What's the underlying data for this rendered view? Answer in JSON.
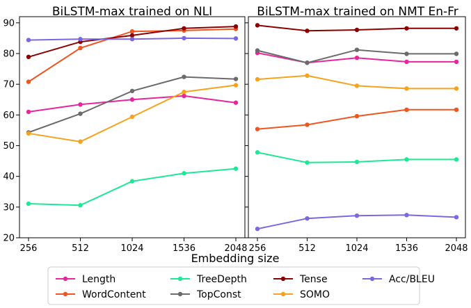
{
  "figure": {
    "xlabel": "Embedding size"
  },
  "colors": {
    "Length": "#e8259a",
    "WordContent": "#f0541f",
    "TreeDepth": "#1de895",
    "TopConst": "#6b6b6b",
    "Tense": "#8b0000",
    "SOMO": "#f7a21b",
    "Acc/BLEU": "#7b68e0"
  },
  "legend": {
    "placement": "bottom-center",
    "entries": [
      "Length",
      "WordContent",
      "TreeDepth",
      "TopConst",
      "Tense",
      "SOMO",
      "Acc/BLEU"
    ]
  },
  "chart_data": [
    {
      "type": "line",
      "title": "BiLSTM-max trained on NLI",
      "xlabel": "",
      "ylabel": "",
      "categories": [
        "256",
        "512",
        "1024",
        "1536",
        "2048"
      ],
      "ylim": [
        20,
        92
      ],
      "yticks": [
        20,
        30,
        40,
        50,
        60,
        70,
        80,
        90
      ],
      "grid": false,
      "series": [
        {
          "name": "Length",
          "values": [
            61.0,
            63.4,
            65.0,
            66.2,
            64.0
          ]
        },
        {
          "name": "WordContent",
          "values": [
            70.8,
            81.8,
            87.2,
            87.5,
            88.0
          ]
        },
        {
          "name": "TreeDepth",
          "values": [
            31.1,
            30.6,
            38.4,
            41.0,
            42.5
          ]
        },
        {
          "name": "TopConst",
          "values": [
            54.3,
            60.4,
            67.8,
            72.4,
            71.7
          ]
        },
        {
          "name": "Tense",
          "values": [
            78.9,
            83.8,
            85.9,
            88.2,
            88.8
          ]
        },
        {
          "name": "SOMO",
          "values": [
            54.0,
            51.3,
            59.4,
            67.5,
            69.7
          ]
        },
        {
          "name": "Acc/BLEU",
          "values": [
            84.4,
            84.7,
            84.7,
            85.0,
            84.9
          ]
        }
      ]
    },
    {
      "type": "line",
      "title": "BiLSTM-max trained on NMT En-Fr",
      "xlabel": "",
      "ylabel": "",
      "categories": [
        "256",
        "512",
        "1024",
        "1536",
        "2048"
      ],
      "ylim": [
        20,
        92
      ],
      "yticks": [
        20,
        30,
        40,
        50,
        60,
        70,
        80,
        90
      ],
      "grid": false,
      "series": [
        {
          "name": "Length",
          "values": [
            80.2,
            77.0,
            78.6,
            77.3,
            77.3
          ]
        },
        {
          "name": "WordContent",
          "values": [
            55.4,
            56.8,
            59.6,
            61.7,
            61.7
          ]
        },
        {
          "name": "TreeDepth",
          "values": [
            47.8,
            44.5,
            44.7,
            45.5,
            45.5
          ]
        },
        {
          "name": "TopConst",
          "values": [
            81.0,
            77.0,
            81.2,
            79.9,
            79.9
          ]
        },
        {
          "name": "Tense",
          "values": [
            89.2,
            87.4,
            87.7,
            88.2,
            88.2
          ]
        },
        {
          "name": "SOMO",
          "values": [
            71.6,
            72.8,
            69.5,
            68.6,
            68.6
          ]
        },
        {
          "name": "Acc/BLEU",
          "values": [
            22.9,
            26.3,
            27.2,
            27.4,
            26.7
          ]
        }
      ]
    }
  ]
}
